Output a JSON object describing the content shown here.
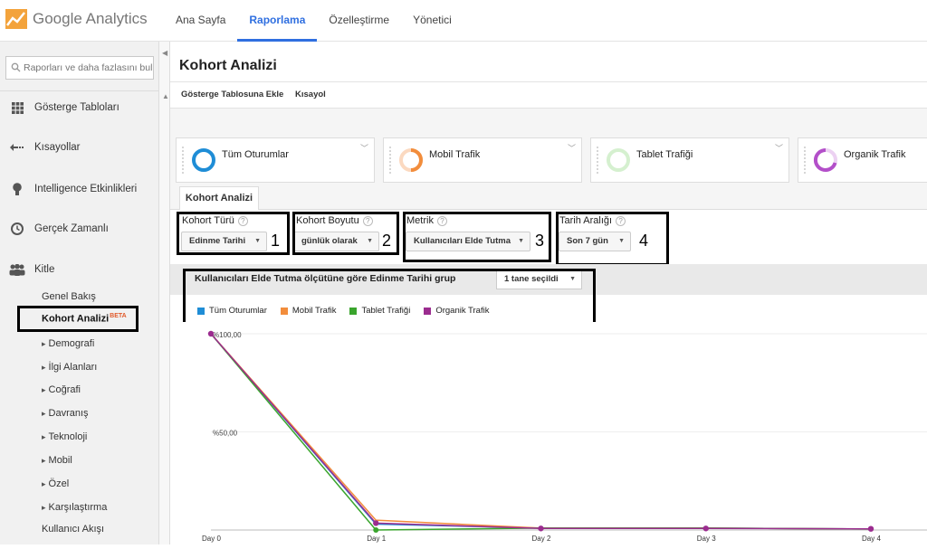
{
  "app": {
    "name": "Google Analytics"
  },
  "topnav": [
    "Ana Sayfa",
    "Raporlama",
    "Özelleştirme",
    "Yönetici"
  ],
  "sidebar": {
    "search_placeholder": "Raporları ve daha fazlasını bulu",
    "items": [
      {
        "label": "Gösterge Tabloları",
        "icon": "grid-icon"
      },
      {
        "label": "Kısayollar",
        "icon": "arrow-left-icon"
      },
      {
        "label": "Intelligence Etkinlikleri",
        "icon": "lightbulb-icon"
      },
      {
        "label": "Gerçek Zamanlı",
        "icon": "clock-icon"
      },
      {
        "label": "Kitle",
        "icon": "people-icon"
      }
    ],
    "audience_subitems": [
      "Genel Bakış",
      "Kohort Analizi",
      "Demografi",
      "İlgi Alanları",
      "Coğrafi",
      "Davranış",
      "Teknoloji",
      "Mobil",
      "Özel",
      "Karşılaştırma",
      "Kullanıcı Akışı"
    ],
    "beta_badge": "BETA"
  },
  "page": {
    "title": "Kohort Analizi",
    "actions": [
      "Gösterge Tablosuna Ekle",
      "Kısayol"
    ]
  },
  "segments": [
    {
      "label": "Tüm Oturumlar",
      "color": "#1f8dd6"
    },
    {
      "label": "Mobil Trafik",
      "color": "#f28d3c"
    },
    {
      "label": "Tablet Trafiği",
      "color": "#63c94f"
    },
    {
      "label": "Organik Trafik",
      "color": "#b34fc9"
    }
  ],
  "tab": "Kohort Analizi",
  "controls": {
    "cohort_type": {
      "label": "Kohort Türü",
      "value": "Edinme Tarihi",
      "num": "1"
    },
    "cohort_size": {
      "label": "Kohort Boyutu",
      "value": "günlük olarak",
      "num": "2"
    },
    "metric": {
      "label": "Metrik",
      "value": "Kullanıcıları Elde Tutma",
      "num": "3"
    },
    "date_range": {
      "label": "Tarih Aralığı",
      "value": "Son 7 gün",
      "num": "4"
    }
  },
  "chart_header": {
    "title": "Kullanıcıları Elde Tutma ölçütüne göre Edinme Tarihi grup",
    "selection": "1 tane seçildi"
  },
  "chart_data": {
    "type": "line",
    "x": [
      "Day 0",
      "Day 1",
      "Day 2",
      "Day 3",
      "Day 4"
    ],
    "y_ticks": [
      "%100,00",
      "%50,00"
    ],
    "ylim": [
      0,
      100
    ],
    "series": [
      {
        "name": "Tüm Oturumlar",
        "color": "#1f8dd6",
        "values": [
          100,
          3,
          1,
          1,
          0.5
        ]
      },
      {
        "name": "Mobil Trafik",
        "color": "#f28d3c",
        "values": [
          100,
          5,
          1,
          1,
          0.5
        ]
      },
      {
        "name": "Tablet Trafiği",
        "color": "#3aa52d",
        "values": [
          100,
          0,
          1,
          1,
          0.5
        ]
      },
      {
        "name": "Organik Trafik",
        "color": "#9b2c8f",
        "values": [
          100,
          3.5,
          0.8,
          0.8,
          0.6
        ]
      }
    ]
  }
}
